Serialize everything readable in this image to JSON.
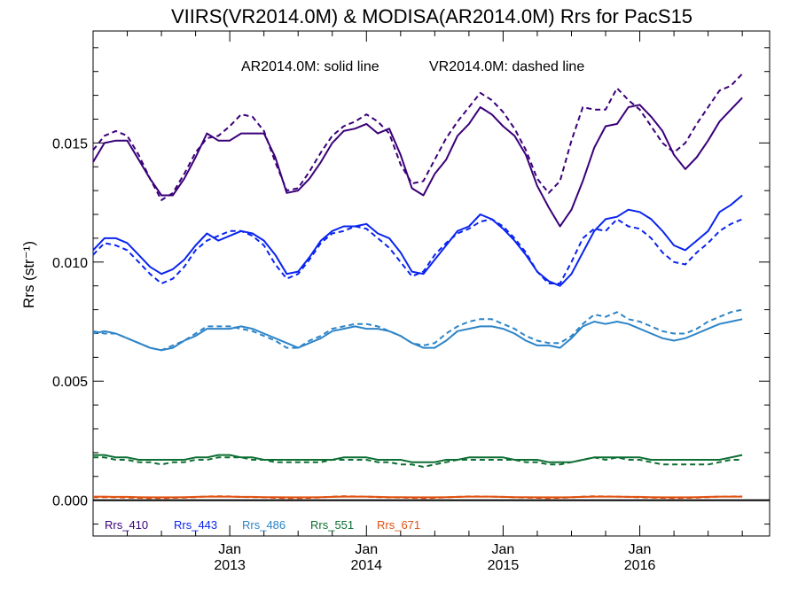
{
  "chart_data": {
    "type": "line",
    "title": "VIIRS(VR2014.0M) & MODISA(AR2014.0M)  Rrs for PacS15",
    "annotation": {
      "solid": "AR2014.0M: solid line",
      "dashed": "VR2014.0M: dashed line"
    },
    "ylabel": "Rrs (str⁻¹)",
    "ylim": [
      -0.0015,
      0.0197
    ],
    "xlim": [
      2012.0,
      2016.95
    ],
    "yticks": [
      {
        "value": 0.0,
        "label": "0.000"
      },
      {
        "value": 0.005,
        "label": "0.005"
      },
      {
        "value": 0.01,
        "label": "0.010"
      },
      {
        "value": 0.015,
        "label": "0.015"
      }
    ],
    "xticks": [
      {
        "value": 2013.0,
        "month": "Jan",
        "year": "2013"
      },
      {
        "value": 2014.0,
        "month": "Jan",
        "year": "2014"
      },
      {
        "value": 2015.0,
        "month": "Jan",
        "year": "2015"
      },
      {
        "value": 2016.0,
        "month": "Jan",
        "year": "2016"
      }
    ],
    "x_start": 2012.0,
    "x_step": 0.08333,
    "zero_line": 0.0,
    "series": [
      {
        "name": "Rrs_410",
        "color": "#3a0079",
        "style": "solid",
        "values": [
          0.0142,
          0.015,
          0.0151,
          0.0151,
          0.0143,
          0.0135,
          0.0128,
          0.0128,
          0.0135,
          0.0144,
          0.0154,
          0.0151,
          0.0151,
          0.0154,
          0.0154,
          0.0154,
          0.0144,
          0.0129,
          0.013,
          0.0135,
          0.0142,
          0.015,
          0.0155,
          0.0156,
          0.0158,
          0.0154,
          0.0156,
          0.0145,
          0.0131,
          0.0128,
          0.0137,
          0.0143,
          0.0153,
          0.0158,
          0.0165,
          0.0162,
          0.0157,
          0.0153,
          0.0145,
          0.0132,
          0.0123,
          0.0115,
          0.0122,
          0.0134,
          0.0148,
          0.0157,
          0.0158,
          0.0165,
          0.0166,
          0.0161,
          0.0155,
          0.0145,
          0.0139,
          0.0144,
          0.0151,
          0.0159,
          0.0164,
          0.0169
        ]
      },
      {
        "name": "Rrs_410",
        "color": "#3a0079",
        "style": "dashed",
        "values": [
          0.0147,
          0.0153,
          0.0155,
          0.0153,
          0.0145,
          0.0135,
          0.0126,
          0.0129,
          0.0137,
          0.0146,
          0.0152,
          0.0153,
          0.0157,
          0.0162,
          0.0161,
          0.0155,
          0.0142,
          0.013,
          0.0131,
          0.0138,
          0.0146,
          0.0153,
          0.0157,
          0.0159,
          0.0162,
          0.0159,
          0.0154,
          0.0141,
          0.0133,
          0.0134,
          0.0143,
          0.0152,
          0.0159,
          0.0165,
          0.0171,
          0.0168,
          0.0163,
          0.0156,
          0.0147,
          0.0135,
          0.0129,
          0.0134,
          0.0151,
          0.0165,
          0.0164,
          0.0164,
          0.0173,
          0.0168,
          0.0164,
          0.0157,
          0.015,
          0.0146,
          0.015,
          0.0158,
          0.0165,
          0.0172,
          0.0174,
          0.0179
        ]
      },
      {
        "name": "Rrs_443",
        "color": "#0a24f0",
        "style": "solid",
        "values": [
          0.0105,
          0.011,
          0.011,
          0.0108,
          0.0103,
          0.0098,
          0.0095,
          0.0097,
          0.0101,
          0.0107,
          0.0112,
          0.0109,
          0.0111,
          0.0113,
          0.0112,
          0.0109,
          0.0103,
          0.0095,
          0.0096,
          0.0102,
          0.0109,
          0.0113,
          0.0115,
          0.0115,
          0.0116,
          0.0112,
          0.011,
          0.0104,
          0.0096,
          0.0095,
          0.0101,
          0.0107,
          0.0113,
          0.0115,
          0.012,
          0.0118,
          0.0114,
          0.0109,
          0.0103,
          0.0096,
          0.0092,
          0.009,
          0.0095,
          0.0104,
          0.0113,
          0.0118,
          0.0119,
          0.0122,
          0.0121,
          0.0118,
          0.0113,
          0.0107,
          0.0105,
          0.0109,
          0.0113,
          0.0121,
          0.0124,
          0.0128
        ]
      },
      {
        "name": "Rrs_443",
        "color": "#0a24f0",
        "style": "dashed",
        "values": [
          0.0103,
          0.0108,
          0.0107,
          0.0105,
          0.01,
          0.0095,
          0.0091,
          0.0093,
          0.0098,
          0.0105,
          0.0109,
          0.0111,
          0.0113,
          0.0113,
          0.0111,
          0.0107,
          0.0099,
          0.0093,
          0.0095,
          0.0101,
          0.0108,
          0.0112,
          0.0113,
          0.0115,
          0.0114,
          0.011,
          0.0106,
          0.01,
          0.0094,
          0.0096,
          0.0103,
          0.0108,
          0.0112,
          0.0114,
          0.0117,
          0.0118,
          0.0115,
          0.011,
          0.0104,
          0.0096,
          0.0091,
          0.0091,
          0.01,
          0.011,
          0.0114,
          0.0113,
          0.0118,
          0.0115,
          0.0114,
          0.011,
          0.0104,
          0.01,
          0.0099,
          0.0104,
          0.0108,
          0.0113,
          0.0116,
          0.0118
        ]
      },
      {
        "name": "Rrs_486",
        "color": "#2d84c8",
        "style": "solid",
        "values": [
          0.007,
          0.0071,
          0.007,
          0.0068,
          0.0066,
          0.0064,
          0.0063,
          0.0064,
          0.0067,
          0.0069,
          0.0072,
          0.0072,
          0.0072,
          0.0073,
          0.0072,
          0.007,
          0.0068,
          0.0066,
          0.0064,
          0.0066,
          0.0068,
          0.0071,
          0.0072,
          0.0073,
          0.0072,
          0.0072,
          0.0071,
          0.0069,
          0.0066,
          0.0064,
          0.0064,
          0.0067,
          0.0071,
          0.0072,
          0.0073,
          0.0073,
          0.0072,
          0.007,
          0.0067,
          0.0065,
          0.0065,
          0.0064,
          0.0068,
          0.0073,
          0.0075,
          0.0074,
          0.0075,
          0.0074,
          0.0072,
          0.007,
          0.0068,
          0.0067,
          0.0068,
          0.007,
          0.0072,
          0.0074,
          0.0075,
          0.0076
        ]
      },
      {
        "name": "Rrs_486",
        "color": "#2d84c8",
        "style": "dashed",
        "values": [
          0.0071,
          0.007,
          0.007,
          0.0068,
          0.0066,
          0.0064,
          0.0063,
          0.0065,
          0.0067,
          0.007,
          0.0073,
          0.0073,
          0.0073,
          0.0072,
          0.0071,
          0.0069,
          0.0067,
          0.0064,
          0.0064,
          0.0067,
          0.0069,
          0.0072,
          0.0073,
          0.0074,
          0.0074,
          0.0073,
          0.0071,
          0.0069,
          0.0066,
          0.0065,
          0.0066,
          0.007,
          0.0073,
          0.0075,
          0.0076,
          0.0076,
          0.0074,
          0.0072,
          0.0069,
          0.0067,
          0.0066,
          0.0066,
          0.0069,
          0.0074,
          0.0078,
          0.0077,
          0.0079,
          0.0076,
          0.0075,
          0.0073,
          0.0071,
          0.007,
          0.007,
          0.0072,
          0.0075,
          0.0077,
          0.0079,
          0.008
        ]
      },
      {
        "name": "Rrs_551",
        "color": "#0c6e32",
        "style": "solid",
        "values": [
          0.0019,
          0.0019,
          0.0018,
          0.0018,
          0.0017,
          0.0017,
          0.0017,
          0.0017,
          0.0017,
          0.0018,
          0.0018,
          0.0019,
          0.0019,
          0.0018,
          0.0018,
          0.0017,
          0.0017,
          0.0017,
          0.0017,
          0.0017,
          0.0017,
          0.0017,
          0.0018,
          0.0018,
          0.0018,
          0.0017,
          0.0017,
          0.0017,
          0.0016,
          0.0016,
          0.0016,
          0.0017,
          0.0017,
          0.0018,
          0.0018,
          0.0018,
          0.0018,
          0.0017,
          0.0017,
          0.0017,
          0.0016,
          0.0016,
          0.0016,
          0.0017,
          0.0018,
          0.0018,
          0.0018,
          0.0018,
          0.0018,
          0.0017,
          0.0017,
          0.0017,
          0.0017,
          0.0017,
          0.0017,
          0.0017,
          0.0018,
          0.0019
        ]
      },
      {
        "name": "Rrs_551",
        "color": "#0c6e32",
        "style": "dashed",
        "values": [
          0.0018,
          0.0018,
          0.0017,
          0.0017,
          0.0016,
          0.0016,
          0.0015,
          0.0016,
          0.0016,
          0.0017,
          0.0017,
          0.0018,
          0.0018,
          0.0018,
          0.0017,
          0.0017,
          0.0016,
          0.0016,
          0.0016,
          0.0016,
          0.0016,
          0.0017,
          0.0017,
          0.0017,
          0.0017,
          0.0016,
          0.0016,
          0.0015,
          0.0015,
          0.0014,
          0.0015,
          0.0016,
          0.0017,
          0.0017,
          0.0017,
          0.0017,
          0.0017,
          0.0017,
          0.0016,
          0.0016,
          0.0015,
          0.0015,
          0.0016,
          0.0017,
          0.0018,
          0.0017,
          0.0018,
          0.0017,
          0.0017,
          0.0016,
          0.0015,
          0.0015,
          0.0015,
          0.0015,
          0.0015,
          0.0016,
          0.0017,
          0.0017
        ]
      },
      {
        "name": "Rrs_671",
        "color": "#e0500f",
        "style": "solid",
        "values": [
          0.00015,
          0.00015,
          0.00014,
          0.00014,
          0.00013,
          0.00012,
          0.00012,
          0.00012,
          0.00013,
          0.00014,
          0.00015,
          0.00015,
          0.00015,
          0.00014,
          0.00014,
          0.00013,
          0.00013,
          0.00012,
          0.00012,
          0.00012,
          0.00013,
          0.00014,
          0.00015,
          0.00015,
          0.00015,
          0.00014,
          0.00013,
          0.00013,
          0.00012,
          0.00012,
          0.00012,
          0.00013,
          0.00014,
          0.00015,
          0.00015,
          0.00015,
          0.00014,
          0.00013,
          0.00013,
          0.00012,
          0.00012,
          0.00012,
          0.00013,
          0.00014,
          0.00015,
          0.00015,
          0.00015,
          0.00014,
          0.00014,
          0.00013,
          0.00012,
          0.00012,
          0.00012,
          0.00013,
          0.00014,
          0.00015,
          0.00015,
          0.00015
        ]
      },
      {
        "name": "Rrs_671",
        "color": "#e0500f",
        "style": "dashed",
        "values": [
          0.00012,
          0.00013,
          0.00012,
          0.00011,
          0.0001,
          9e-05,
          9e-05,
          0.0001,
          0.00011,
          0.00013,
          0.00016,
          0.00017,
          0.00016,
          0.00014,
          0.00013,
          0.00012,
          0.0001,
          9e-05,
          9e-05,
          0.0001,
          0.00012,
          0.00015,
          0.00017,
          0.00016,
          0.00015,
          0.00013,
          0.00012,
          0.00011,
          0.0001,
          9e-05,
          0.0001,
          0.00012,
          0.00014,
          0.00016,
          0.00016,
          0.00015,
          0.00014,
          0.00012,
          0.00011,
          0.0001,
          9e-05,
          0.0001,
          0.00012,
          0.00015,
          0.00017,
          0.00016,
          0.00015,
          0.00014,
          0.00012,
          0.00011,
          0.0001,
          9e-05,
          0.0001,
          0.00011,
          0.00013,
          0.00015,
          0.00016,
          0.00016
        ]
      }
    ],
    "legend": [
      {
        "label": "Rrs_410",
        "color": "#3a0079"
      },
      {
        "label": "Rrs_443",
        "color": "#0a24f0"
      },
      {
        "label": "Rrs_486",
        "color": "#2d84c8"
      },
      {
        "label": "Rrs_551",
        "color": "#0c6e32"
      },
      {
        "label": "Rrs_671",
        "color": "#e0500f"
      }
    ]
  }
}
